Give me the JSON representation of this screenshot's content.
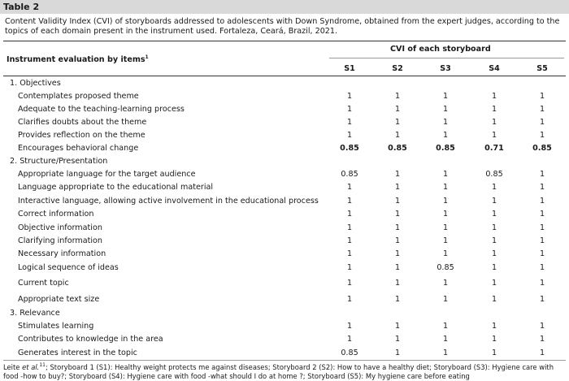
{
  "table_label": "Table 2",
  "caption": "Content Validity Index (CVI) of storyboards addressed to adolescents with Down Syndrome, obtained from the expert judges, according to the topics of each domain present in the instrument used. Fortaleza, Ceará, Brazil, 2021.",
  "header": {
    "left_label": "Instrument evaluation by items",
    "left_sup": "1",
    "group_label": "CVI of each storyboard",
    "columns": [
      "S1",
      "S2",
      "S3",
      "S4",
      "S5"
    ]
  },
  "sections": [
    {
      "title": "1. Objectives",
      "rows": [
        {
          "label": "Contemplates proposed theme",
          "values": [
            "1",
            "1",
            "1",
            "1",
            "1"
          ]
        },
        {
          "label": "Adequate to the teaching-learning process",
          "values": [
            "1",
            "1",
            "1",
            "1",
            "1"
          ]
        },
        {
          "label": "Clarifies doubts about the theme",
          "values": [
            "1",
            "1",
            "1",
            "1",
            "1"
          ]
        },
        {
          "label": "Provides reflection on the theme",
          "values": [
            "1",
            "1",
            "1",
            "1",
            "1"
          ]
        },
        {
          "label": "Encourages behavioral change",
          "values": [
            "0.85",
            "0.85",
            "0.85",
            "0.71",
            "0.85"
          ],
          "bold": true
        }
      ]
    },
    {
      "title": "2. Structure/Presentation",
      "rows": [
        {
          "label": "Appropriate language for the target audience",
          "values": [
            "0.85",
            "1",
            "1",
            "0.85",
            "1"
          ]
        },
        {
          "label": "Language appropriate to the educational material",
          "values": [
            "1",
            "1",
            "1",
            "1",
            "1"
          ]
        },
        {
          "label": "Interactive language, allowing active involvement in the educational process",
          "values": [
            "1",
            "1",
            "1",
            "1",
            "1"
          ]
        },
        {
          "label": "Correct information",
          "values": [
            "1",
            "1",
            "1",
            "1",
            "1"
          ]
        },
        {
          "label": "Objective information",
          "values": [
            "1",
            "1",
            "1",
            "1",
            "1"
          ]
        },
        {
          "label": "Clarifying information",
          "values": [
            "1",
            "1",
            "1",
            "1",
            "1"
          ]
        },
        {
          "label": "Necessary information",
          "values": [
            "1",
            "1",
            "1",
            "1",
            "1"
          ]
        },
        {
          "label": "Logical sequence of ideas",
          "values": [
            "1",
            "1",
            "0.85",
            "1",
            "1"
          ]
        },
        {
          "label": "Current topic",
          "values": [
            "1",
            "1",
            "1",
            "1",
            "1"
          ]
        },
        {
          "label": "Appropriate text size",
          "values": [
            "1",
            "1",
            "1",
            "1",
            "1"
          ]
        }
      ]
    },
    {
      "title": "3. Relevance",
      "rows": [
        {
          "label": "Stimulates learning",
          "values": [
            "1",
            "1",
            "1",
            "1",
            "1"
          ]
        },
        {
          "label": "Contributes to knowledge in the area",
          "values": [
            "1",
            "1",
            "1",
            "1",
            "1"
          ]
        },
        {
          "label": "Generates interest in the topic",
          "values": [
            "0.85",
            "1",
            "1",
            "1",
            "1"
          ]
        }
      ]
    }
  ],
  "footer": {
    "prefix": "Leite ",
    "etal": "et al.",
    "sup": "11",
    "text": "; Storyboard 1 (S1): Healthy weight protects me against diseases; Storyboard 2 (S2): How to have a healthy diet; Storyboard (S3): Hygiene care with food -how to buy?; Storyboard (S4): Hygiene care with food -what should I do at home ?; Storyboard (S5): My hygiene care before eating"
  }
}
